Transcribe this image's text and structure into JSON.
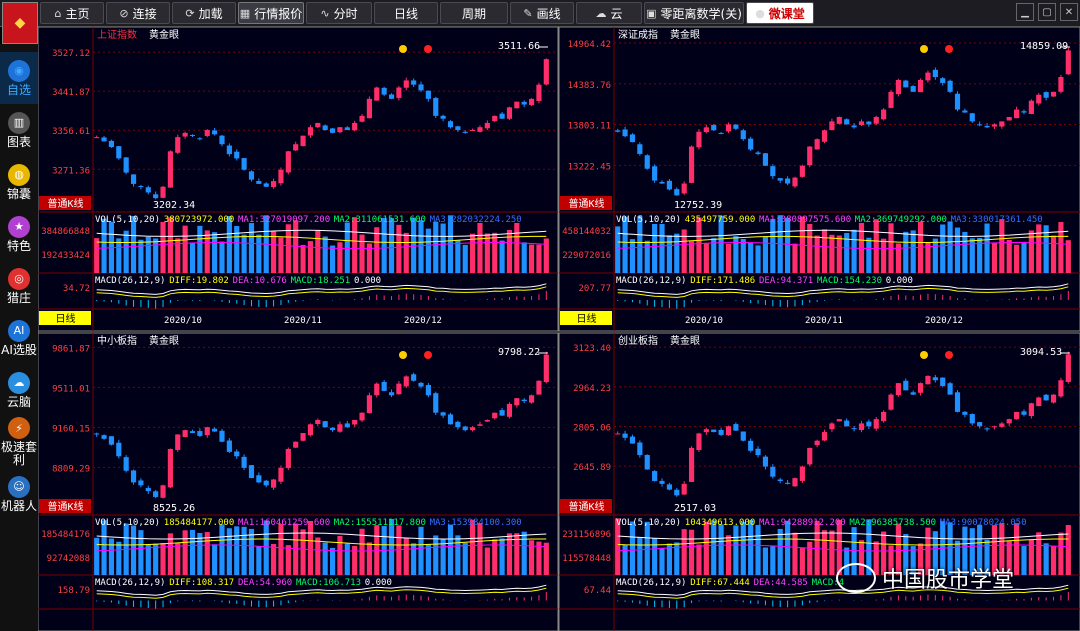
{
  "toolbar": {
    "items": [
      {
        "label": "主页",
        "icon": "home-icon"
      },
      {
        "label": "连接",
        "icon": "link-icon"
      },
      {
        "label": "加载",
        "icon": "refresh-icon"
      },
      {
        "label": "行情报价",
        "icon": "quote-icon"
      },
      {
        "label": "分时",
        "icon": "timeline-icon"
      },
      {
        "label": "日线",
        "icon": ""
      },
      {
        "label": "周期",
        "icon": ""
      },
      {
        "label": "画线",
        "icon": "pencil-icon"
      },
      {
        "label": "云",
        "icon": "cloud-icon"
      },
      {
        "label": "零距离数学(关)",
        "icon": "monitor-icon"
      },
      {
        "label": "微课堂",
        "icon": "brand-icon"
      }
    ],
    "active": "行情报价"
  },
  "sidebar": {
    "items": [
      {
        "label": "自选",
        "icon": "watchlist-icon"
      },
      {
        "label": "图表",
        "icon": "chart-icon"
      },
      {
        "label": "锦囊",
        "icon": "bag-icon"
      },
      {
        "label": "特色",
        "icon": "star-icon"
      },
      {
        "label": "猎庄",
        "icon": "target-icon"
      },
      {
        "label": "AI选股",
        "icon": "ai-icon"
      },
      {
        "label": "云脑",
        "icon": "cloud-brain-icon"
      },
      {
        "label": "极速套利",
        "icon": "arbitrage-icon"
      },
      {
        "label": "机器人",
        "icon": "robot-icon"
      }
    ],
    "active": "自选"
  },
  "watermark": "中国股市学堂",
  "colors": {
    "up": "#ff2d6a",
    "down": "#1e90ff",
    "bg": "#000018",
    "grid": "#7a0000",
    "axis": "#ff4040",
    "ma1": "#ffffff",
    "ma2": "#ffff00",
    "ma3": "#ff00ff",
    "diff": "#ffffff",
    "dea": "#ffff00"
  },
  "chart_data": [
    {
      "type": "candlestick",
      "title": "上证指数",
      "tag": "黄金眼",
      "chip": "普通K线",
      "period": "日线",
      "y_ticks": [
        "3527.12",
        "3441.87",
        "3356.61",
        "3271.36"
      ],
      "ylim": [
        3200,
        3560
      ],
      "high_label": "3511.66",
      "low_label": "3202.34",
      "high": 3511.66,
      "low": 3202.34,
      "x_labels": [
        "2020/10",
        "2020/11",
        "2020/12"
      ],
      "vol_header": [
        "VOL(5,10,20)",
        "380723972.000",
        "MA1:327019097.200",
        "MA2:311061531.600",
        "MA3:282032224.250"
      ],
      "vol_ticks": [
        "384866848",
        "192433424"
      ],
      "macd_header": [
        "MACD(26,12,9)",
        "DIFF:19.802",
        "DEA:10.676",
        "MACD:18.251",
        "0.000"
      ],
      "macd_ticks": [
        "34.72"
      ]
    },
    {
      "type": "candlestick",
      "title": "深证成指",
      "tag": "黄金眼",
      "chip": "普通K线",
      "period": "日线",
      "y_ticks": [
        "14964.42",
        "14383.76",
        "13803.11",
        "13222.45"
      ],
      "ylim": [
        12700,
        15050
      ],
      "high_label": "14859.09",
      "low_label": "12752.39",
      "high": 14859.09,
      "low": 12752.39,
      "x_labels": [
        "2020/10",
        "2020/11",
        "2020/12"
      ],
      "vol_header": [
        "VOL(5,10,20)",
        "435497759.000",
        "MA1:380897575.600",
        "MA2:369749292.000",
        "MA3:330017361.450"
      ],
      "vol_ticks": [
        "458144032",
        "229072016"
      ],
      "macd_header": [
        "MACD(26,12,9)",
        "DIFF:171.486",
        "DEA:94.371",
        "MACD:154.230",
        "0.000"
      ],
      "macd_ticks": [
        "207.77"
      ]
    },
    {
      "type": "candlestick",
      "title": "中小板指",
      "tag": "黄金眼",
      "chip": "普通K线",
      "period": "",
      "y_ticks": [
        "9861.87",
        "9511.01",
        "9160.15",
        "8809.29"
      ],
      "ylim": [
        8480,
        9900
      ],
      "high_label": "9798.22",
      "low_label": "8525.26",
      "high": 9798.22,
      "low": 8525.26,
      "x_labels": [],
      "vol_header": [
        "VOL(5,10,20)",
        "185484177.000",
        "MA1:160461259.600",
        "MA2:155511117.800",
        "MA3:153984100.300"
      ],
      "vol_ticks": [
        "185484176",
        "92742088"
      ],
      "macd_header": [
        "MACD(26,12,9)",
        "DIFF:108.317",
        "DEA:54.960",
        "MACD:106.713",
        "0.000"
      ],
      "macd_ticks": [
        "158.79"
      ]
    },
    {
      "type": "candlestick",
      "title": "创业板指",
      "tag": "黄金眼",
      "chip": "普通K线",
      "period": "",
      "y_ticks": [
        "3123.40",
        "2964.23",
        "2805.06",
        "2645.89"
      ],
      "ylim": [
        2490,
        3140
      ],
      "high_label": "3094.53",
      "low_label": "2517.03",
      "high": 3094.53,
      "low": 2517.03,
      "x_labels": [],
      "vol_header": [
        "VOL(5,10,20)",
        "104349613.000",
        "MA1:94288912.200",
        "MA2:96385738.500",
        "MA3:90078024.050"
      ],
      "vol_ticks": [
        "231156896",
        "115578448"
      ],
      "macd_header": [
        "MACD(26,12,9)",
        "DIFF:67.444",
        "DEA:44.585",
        "MACD:4"
      ],
      "macd_ticks": [
        "67.44"
      ]
    }
  ]
}
